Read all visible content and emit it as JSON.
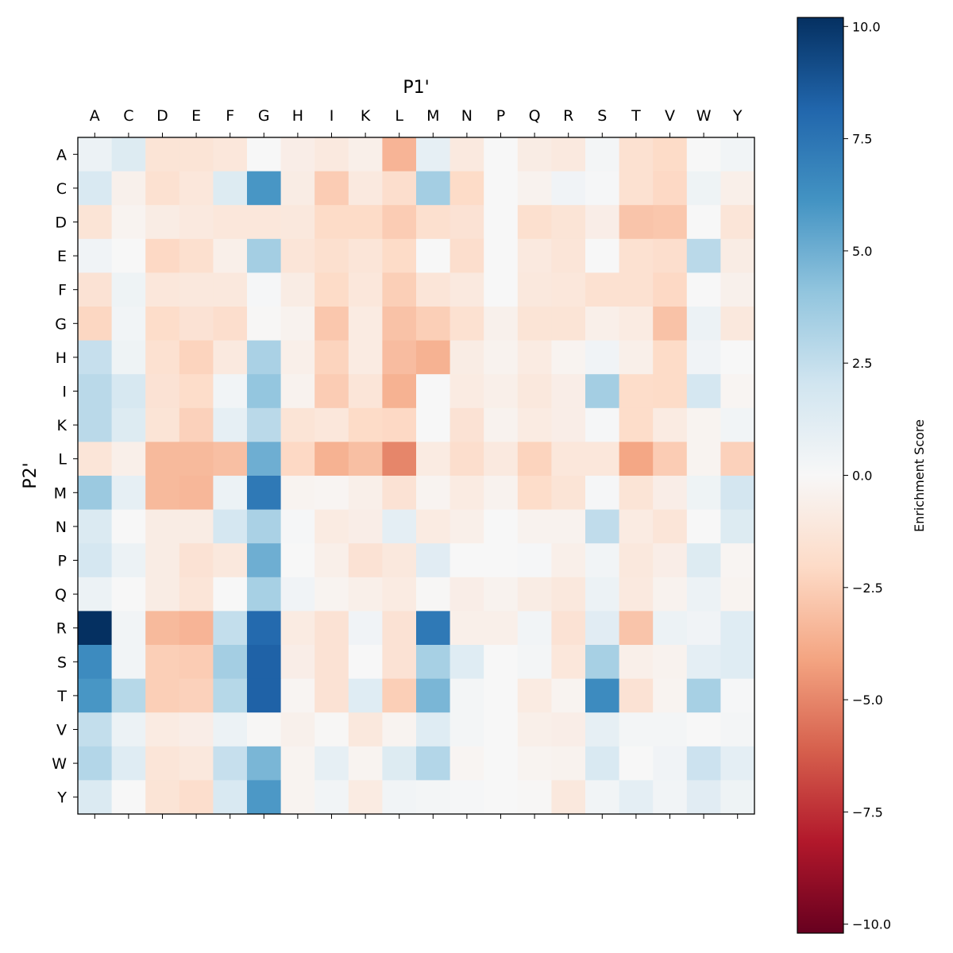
{
  "chart_data": {
    "type": "heatmap",
    "xlabel": "P1'",
    "ylabel": "P2'",
    "x_categories": [
      "A",
      "C",
      "D",
      "E",
      "F",
      "G",
      "H",
      "I",
      "K",
      "L",
      "M",
      "N",
      "P",
      "Q",
      "R",
      "S",
      "T",
      "V",
      "W",
      "Y"
    ],
    "y_categories": [
      "A",
      "C",
      "D",
      "E",
      "F",
      "G",
      "H",
      "I",
      "K",
      "L",
      "M",
      "N",
      "P",
      "Q",
      "R",
      "S",
      "T",
      "V",
      "W",
      "Y"
    ],
    "colormap": "RdBu",
    "vmin": -10.2,
    "vmax": 10.2,
    "colorbar": {
      "label": "Enrichment Score",
      "ticks": [
        10.0,
        7.5,
        5.0,
        2.5,
        0.0,
        -2.5,
        -5.0,
        -7.5,
        -10.0
      ],
      "tick_labels": [
        "10.0",
        "7.5",
        "5.0",
        "2.5",
        "0.0",
        "−2.5",
        "−5.0",
        "−7.5",
        "−10.0"
      ]
    },
    "values": [
      [
        0.6,
        1.4,
        -1.4,
        -1.4,
        -1.2,
        0.0,
        -0.7,
        -1.0,
        -0.6,
        -3.5,
        0.9,
        -1.0,
        0.0,
        -0.8,
        -1.0,
        0.2,
        -1.6,
        -2.0,
        0.0,
        0.3
      ],
      [
        1.6,
        -0.5,
        -1.6,
        -1.2,
        1.4,
        6.0,
        -0.8,
        -2.6,
        -1.0,
        -1.8,
        3.5,
        -2.0,
        0.0,
        -0.4,
        0.4,
        0.1,
        -1.6,
        -2.1,
        0.5,
        -0.6
      ],
      [
        -1.4,
        -0.3,
        -0.8,
        -1.0,
        -1.2,
        -1.2,
        -1.1,
        -2.0,
        -2.0,
        -2.6,
        -1.7,
        -1.5,
        0.0,
        -1.7,
        -1.4,
        -0.7,
        -2.9,
        -2.8,
        0.0,
        -1.3
      ],
      [
        0.4,
        0.0,
        -2.1,
        -1.7,
        -0.6,
        3.5,
        -1.3,
        -1.7,
        -1.3,
        -2.0,
        0.0,
        -1.8,
        0.0,
        -1.0,
        -1.3,
        0.0,
        -1.6,
        -1.8,
        2.8,
        -0.8
      ],
      [
        -1.5,
        0.5,
        -1.2,
        -1.1,
        -1.1,
        0.1,
        -0.8,
        -2.0,
        -1.2,
        -2.5,
        -1.3,
        -1.0,
        0.0,
        -1.1,
        -1.2,
        -1.6,
        -1.6,
        -2.1,
        0.0,
        -0.5
      ],
      [
        -2.2,
        0.3,
        -1.9,
        -1.5,
        -1.8,
        -0.1,
        -0.4,
        -2.8,
        -0.9,
        -3.0,
        -2.5,
        -1.6,
        -0.5,
        -1.4,
        -1.4,
        -0.6,
        -0.9,
        -3.0,
        0.6,
        -1.1
      ],
      [
        2.4,
        0.5,
        -1.6,
        -2.3,
        -1.0,
        3.3,
        -0.6,
        -2.3,
        -0.9,
        -3.2,
        -3.6,
        -0.8,
        -0.4,
        -0.9,
        -0.3,
        0.4,
        -0.6,
        -2.0,
        0.4,
        0.0
      ],
      [
        2.8,
        1.7,
        -1.5,
        -1.9,
        0.3,
        4.0,
        -0.4,
        -2.6,
        -1.3,
        -3.6,
        0.0,
        -0.9,
        -0.6,
        -1.1,
        -0.7,
        3.5,
        -1.9,
        -2.0,
        1.8,
        -0.2
      ],
      [
        2.8,
        1.4,
        -1.4,
        -2.4,
        0.9,
        2.8,
        -1.4,
        -1.2,
        -2.0,
        -2.1,
        0.0,
        -1.5,
        -0.4,
        -0.9,
        -0.7,
        0.1,
        -1.9,
        -0.9,
        -0.3,
        0.3
      ],
      [
        -1.3,
        -0.6,
        -3.3,
        -3.3,
        -3.1,
        5.0,
        -2.1,
        -3.6,
        -3.1,
        -5.0,
        -0.9,
        -1.8,
        -1.0,
        -2.3,
        -1.2,
        -1.2,
        -4.0,
        -2.6,
        -0.3,
        -2.4
      ],
      [
        3.8,
        0.9,
        -3.3,
        -3.4,
        0.6,
        7.3,
        -0.3,
        -0.2,
        -0.6,
        -1.5,
        -0.3,
        -0.9,
        -0.4,
        -1.9,
        -1.4,
        0.1,
        -1.4,
        -0.7,
        0.5,
        1.9
      ],
      [
        1.5,
        0.0,
        -0.8,
        -0.8,
        1.8,
        3.3,
        0.1,
        -0.9,
        -0.7,
        1.0,
        -0.9,
        -0.6,
        0.0,
        -0.4,
        -0.4,
        2.6,
        -0.9,
        -1.3,
        0.0,
        1.4
      ],
      [
        1.8,
        0.6,
        -0.8,
        -1.5,
        -1.1,
        5.0,
        0.0,
        -0.6,
        -1.5,
        -1.1,
        1.2,
        0.0,
        0.0,
        0.1,
        -0.6,
        0.3,
        -1.1,
        -0.7,
        1.4,
        -0.2
      ],
      [
        0.6,
        0.0,
        -0.8,
        -1.3,
        0.0,
        3.4,
        0.4,
        -0.3,
        -0.6,
        -0.9,
        -0.1,
        -0.7,
        -0.4,
        -0.8,
        -1.1,
        0.6,
        -1.0,
        -0.4,
        0.6,
        -0.3
      ],
      [
        10.2,
        0.3,
        -3.3,
        -3.5,
        2.5,
        8.0,
        -0.9,
        -1.5,
        0.4,
        -1.5,
        7.3,
        -0.6,
        -0.6,
        0.3,
        -1.5,
        1.2,
        -2.9,
        0.6,
        0.4,
        1.3
      ],
      [
        6.5,
        0.3,
        -2.5,
        -2.6,
        3.5,
        8.3,
        -0.7,
        -1.5,
        0.0,
        -1.5,
        3.4,
        1.3,
        0.0,
        0.2,
        -1.2,
        3.4,
        -0.6,
        -0.4,
        1.0,
        1.3
      ],
      [
        6.0,
        2.9,
        -2.5,
        -2.4,
        2.9,
        8.3,
        -0.2,
        -1.5,
        1.3,
        -2.5,
        4.7,
        0.2,
        0.0,
        -0.9,
        -0.3,
        6.5,
        -1.5,
        -0.3,
        3.4,
        0.1
      ],
      [
        2.5,
        0.6,
        -0.9,
        -0.7,
        0.6,
        -0.1,
        -0.5,
        -0.1,
        -1.1,
        -0.3,
        1.3,
        0.2,
        0.0,
        -0.6,
        -0.7,
        0.9,
        0.2,
        0.2,
        0.0,
        0.2
      ],
      [
        3.0,
        1.3,
        -1.3,
        -1.1,
        2.4,
        4.7,
        -0.3,
        0.9,
        -0.3,
        1.4,
        3.0,
        -0.2,
        0.0,
        -0.3,
        -0.4,
        1.6,
        0.0,
        0.4,
        2.2,
        1.0
      ],
      [
        1.5,
        0.0,
        -1.4,
        -1.8,
        1.6,
        5.9,
        -0.3,
        0.3,
        -0.9,
        0.3,
        0.2,
        0.1,
        0.0,
        -0.1,
        -1.1,
        0.3,
        1.0,
        0.3,
        1.2,
        0.5
      ]
    ]
  }
}
